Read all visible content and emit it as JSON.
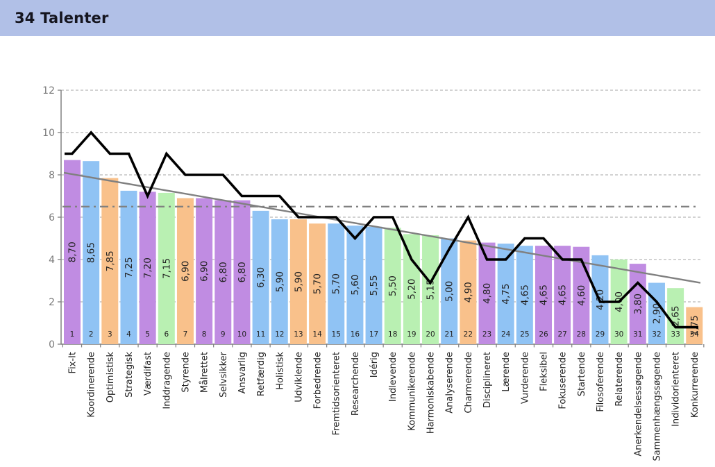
{
  "header": {
    "title": "34 Talenter",
    "background": "#b1c0e7"
  },
  "chart_data": {
    "type": "bar",
    "title": "34 Talenter",
    "ylim": [
      0,
      12
    ],
    "yticks": [
      0,
      2,
      4,
      6,
      8,
      10,
      12
    ],
    "grid": true,
    "legend_position": "none",
    "categories": [
      "Fix-It",
      "Koordinerende",
      "Optimistisk",
      "Strategisk",
      "Værdifast",
      "Inddragende",
      "Styrende",
      "Målrettet",
      "Selvsikker",
      "Ansvarlig",
      "Retfærdig",
      "Holistisk",
      "Udviklende",
      "Forbedrende",
      "Fremtidsorienteret",
      "Researchende",
      "Idérig",
      "Indlevende",
      "Kommunikerende",
      "Harmoniskabende",
      "Analyserende",
      "Charmerende",
      "Disciplineret",
      "Lærende",
      "Vurderende",
      "Fleksibel",
      "Fokuserende",
      "Startende",
      "Filosoferende",
      "Relaterende",
      "Anerkendelsessøgende",
      "Sammenhængssøgende",
      "Individorienteret",
      "Konkurrerende"
    ],
    "ranks": [
      "1",
      "2",
      "3",
      "4",
      "5",
      "6",
      "7",
      "8",
      "9",
      "10",
      "11",
      "12",
      "13",
      "14",
      "15",
      "16",
      "17",
      "18",
      "19",
      "20",
      "21",
      "22",
      "23",
      "24",
      "25",
      "26",
      "27",
      "28",
      "29",
      "30",
      "31",
      "32",
      "33",
      "34"
    ],
    "bar_series": {
      "values": [
        8.7,
        8.65,
        7.85,
        7.25,
        7.2,
        7.15,
        6.9,
        6.9,
        6.8,
        6.8,
        6.3,
        5.9,
        5.9,
        5.7,
        5.7,
        5.6,
        5.55,
        5.5,
        5.2,
        5.15,
        5.0,
        4.9,
        4.8,
        4.75,
        4.65,
        4.65,
        4.65,
        4.6,
        4.2,
        4.0,
        3.8,
        2.9,
        2.65,
        1.75
      ],
      "labels": [
        "8,70",
        "8,65",
        "7,85",
        "7,25",
        "7,20",
        "7,15",
        "6,90",
        "6,90",
        "6,80",
        "6,80",
        "6,30",
        "5,90",
        "5,90",
        "5,70",
        "5,70",
        "5,60",
        "5,55",
        "5,50",
        "5,20",
        "5,15",
        "5,00",
        "4,90",
        "4,80",
        "4,75",
        "4,65",
        "4,65",
        "4,65",
        "4,60",
        "4,20",
        "4,00",
        "3,80",
        "2,90",
        "2,65",
        "1,75"
      ],
      "colors": [
        "purple",
        "blue",
        "orange",
        "blue",
        "purple",
        "green",
        "orange",
        "purple",
        "purple",
        "purple",
        "blue",
        "blue",
        "orange",
        "orange",
        "blue",
        "blue",
        "blue",
        "green",
        "green",
        "green",
        "blue",
        "orange",
        "purple",
        "blue",
        "blue",
        "purple",
        "purple",
        "purple",
        "blue",
        "green",
        "purple",
        "blue",
        "green",
        "orange"
      ]
    },
    "line_series": {
      "values": [
        9,
        10,
        9,
        9,
        7,
        9,
        8,
        8,
        8,
        7,
        7,
        7,
        6,
        6,
        6,
        5,
        6,
        6,
        4,
        2.9,
        4.5,
        6,
        4,
        4,
        5,
        5,
        4,
        4,
        2,
        2,
        2.9,
        2,
        0.8,
        0.8
      ]
    },
    "reference_line_y": 6.5,
    "trend_line": {
      "y_start": 8.1,
      "y_end": 2.9
    },
    "palette": {
      "purple": "#c08ce2",
      "blue": "#90c3f4",
      "orange": "#f9c18b",
      "green": "#b9f0b2",
      "line": "#000000",
      "trend": "#808080",
      "reference": "#808080",
      "grid": "#b8b8b8",
      "axis": "#808080",
      "text_dark": "#222222",
      "text_axis": "#7a7a7a"
    }
  }
}
